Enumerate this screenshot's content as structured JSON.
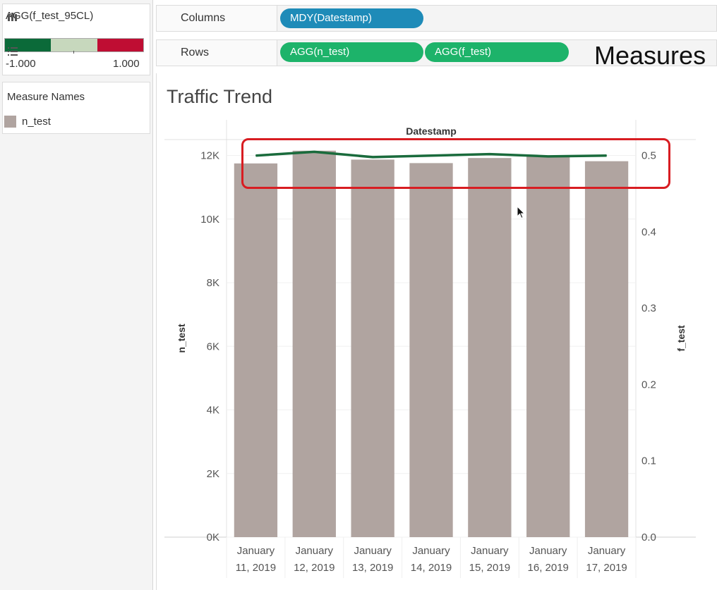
{
  "color_legend": {
    "title": "AGG(f_test_95CL)",
    "min_label": "-1.000",
    "max_label": "1.000",
    "colors": [
      "#0b6a39",
      "#c7d8bd",
      "#bf0d33"
    ]
  },
  "measure_names": {
    "title": "Measure Names",
    "items": [
      {
        "label": "n_test",
        "color": "#b0a4a0"
      }
    ]
  },
  "shelves": {
    "columns": {
      "icon": "columns-icon",
      "label": "Columns",
      "pills": [
        "MDY(Datestamp)"
      ]
    },
    "rows": {
      "icon": "rows-icon",
      "label": "Rows",
      "pills": [
        "AGG(n_test)",
        "AGG(f_test)"
      ]
    }
  },
  "measures_label": "Measures",
  "viz_title": "Traffic Trend",
  "chart_data": {
    "type": "bar",
    "xlabel": "Datestamp",
    "categories": [
      "January 11, 2019",
      "January 12, 2019",
      "January 13, 2019",
      "January 14, 2019",
      "January 15, 2019",
      "January 16, 2019",
      "January 17, 2019"
    ],
    "category_lines": [
      [
        "January",
        "11, 2019"
      ],
      [
        "January",
        "12, 2019"
      ],
      [
        "January",
        "13, 2019"
      ],
      [
        "January",
        "14, 2019"
      ],
      [
        "January",
        "15, 2019"
      ],
      [
        "January",
        "16, 2019"
      ],
      [
        "January",
        "17, 2019"
      ]
    ],
    "series": [
      {
        "name": "n_test",
        "type": "bar",
        "axis": "left",
        "color": "#b0a4a0",
        "values": [
          11750,
          12150,
          11870,
          11760,
          11920,
          11980,
          11820
        ]
      },
      {
        "name": "f_test",
        "type": "line",
        "axis": "right",
        "color": "#1a6b3c",
        "values": [
          0.5,
          0.505,
          0.498,
          0.5,
          0.502,
          0.499,
          0.5
        ]
      }
    ],
    "left_axis": {
      "label": "n_test",
      "ylim": [
        0,
        12500
      ],
      "ticks": [
        0,
        2000,
        4000,
        6000,
        8000,
        10000,
        12000
      ],
      "tick_labels": [
        "0K",
        "2K",
        "4K",
        "6K",
        "8K",
        "10K",
        "12K"
      ]
    },
    "right_axis": {
      "label": "f_test",
      "ylim": [
        0,
        0.521
      ],
      "ticks": [
        0.0,
        0.1,
        0.2,
        0.3,
        0.4,
        0.5
      ],
      "tick_labels": [
        "0.0",
        "0.1",
        "0.2",
        "0.3",
        "0.4",
        "0.5"
      ]
    },
    "grid": true,
    "highlight": "red rounded box around f_test line"
  }
}
